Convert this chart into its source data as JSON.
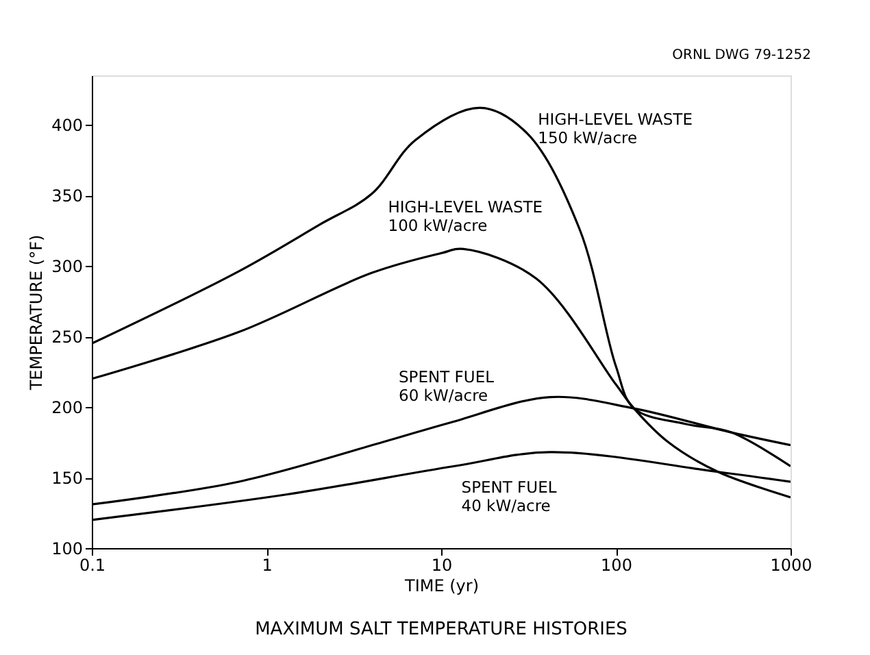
{
  "chart_data": {
    "type": "line",
    "title": "MAXIMUM SALT TEMPERATURE HISTORIES",
    "xlabel": "TIME (yr)",
    "ylabel": "TEMPERATURE (°F)",
    "log": "x",
    "grid": false,
    "marker": "none",
    "line_style": "solid",
    "xlim": [
      0.1,
      1000
    ],
    "xticks": [
      0.1,
      1,
      10,
      100,
      1000
    ],
    "ylim": [
      100,
      435
    ],
    "yticks": [
      100,
      150,
      200,
      250,
      300,
      350,
      400
    ],
    "series": [
      {
        "color": "#000000",
        "x": [
          0.1,
          0.69,
          2,
          4.0,
          7.1,
          16.7,
          31,
          62,
          100,
          127,
          250,
          458,
          1000
        ],
        "values": [
          245,
          296,
          329,
          351,
          389,
          412,
          394,
          326,
          229,
          199,
          188,
          182,
          158
        ]
      },
      {
        "color": "#000000",
        "x": [
          0.1,
          0.69,
          4.0,
          10,
          13.4,
          35,
          100,
          127,
          200,
          385,
          1000
        ],
        "values": [
          220,
          253,
          295,
          309,
          312,
          291,
          216,
          199,
          175,
          154,
          136
        ]
      },
      {
        "color": "#000000",
        "x": [
          0.1,
          0.69,
          4.6,
          11.3,
          42,
          127,
          458,
          1000
        ],
        "values": [
          131,
          147,
          175,
          189,
          207,
          199,
          182,
          173
        ]
      },
      {
        "color": "#000000",
        "x": [
          0.1,
          1.3,
          11.8,
          42,
          385,
          1000
        ],
        "values": [
          120,
          138,
          158,
          168,
          154,
          147
        ]
      }
    ],
    "annotations": [
      {
        "text": "HIGH-LEVEL WASTE\n150 kW/acre",
        "x": 31,
        "y": 394
      },
      {
        "text": "HIGH-LEVEL WASTE\n100 kW/acre",
        "x": 4.0,
        "y": 295
      },
      {
        "text": "SPENT FUEL\n60 kW/acre",
        "x": 4.6,
        "y": 175
      },
      {
        "text": "SPENT FUEL\n40 kW/acre",
        "x": 11.3,
        "y": 156
      },
      "ORNL DWG 79-1252"
    ]
  }
}
